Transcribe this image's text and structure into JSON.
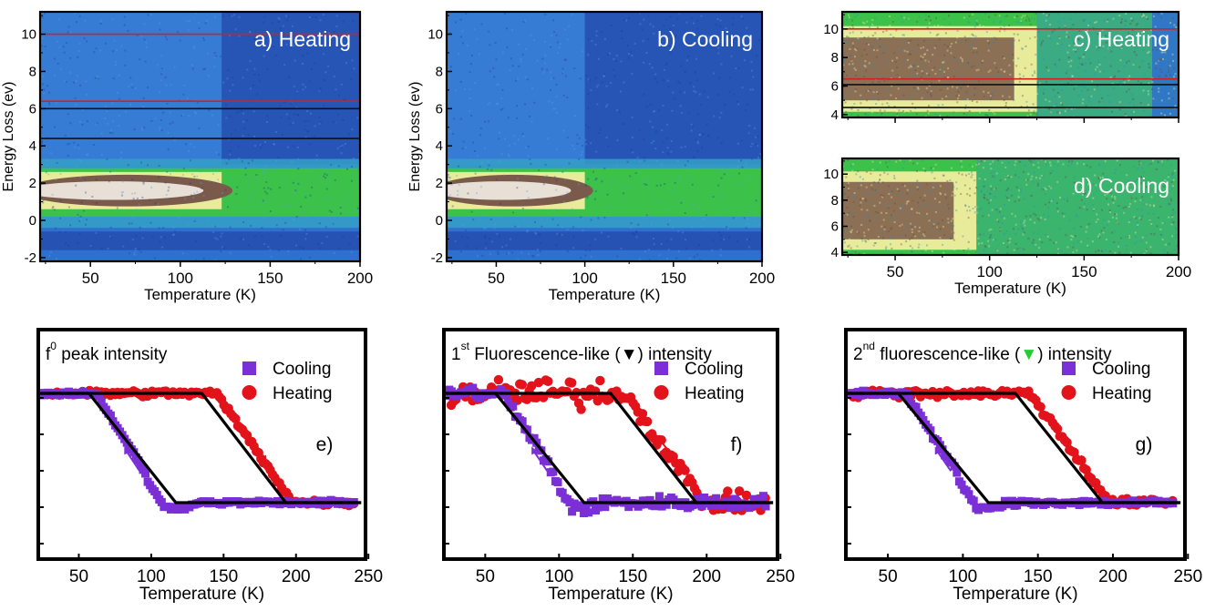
{
  "colors": {
    "frame": "#000000",
    "map_dark_blue": "#1f3fa0",
    "map_blue": "#2f6fd0",
    "map_cyan": "#35a0c8",
    "map_green": "#3cc24a",
    "map_yellow": "#e8ec9a",
    "map_brown": "#7a5a4a",
    "map_pale": "#f4ede6",
    "hline_red": "#d42020",
    "hline_black": "#111111",
    "cooling": "#7b2fd6",
    "heating": "#e3131b",
    "fit": "#000000",
    "down_marker": "#000000",
    "green_marker": "#22cc33"
  },
  "chart_data": [
    {
      "id": "a",
      "type": "heatmap",
      "panel_label": "a) Heating",
      "xlabel": "Temperature (K)",
      "ylabel": "Energy Loss (ev)",
      "xlim": [
        22,
        200
      ],
      "ylim": [
        -2.2,
        11.2
      ],
      "xticks": [
        "50",
        "100",
        "150",
        "200"
      ],
      "yticks": [
        "-2",
        "0",
        "2",
        "4",
        "6",
        "8",
        "10"
      ],
      "transition_temperature": 123,
      "hlines": [
        {
          "y": 10.0,
          "color": "red"
        },
        {
          "y": 6.4,
          "color": "red"
        },
        {
          "y": 6.0,
          "color": "black"
        },
        {
          "y": 4.4,
          "color": "black"
        }
      ]
    },
    {
      "id": "b",
      "type": "heatmap",
      "panel_label": "b) Cooling",
      "xlabel": "Temperature (K)",
      "ylabel": "Energy Loss (ev)",
      "xlim": [
        22,
        200
      ],
      "ylim": [
        -2.2,
        11.2
      ],
      "xticks": [
        "50",
        "100",
        "150",
        "200"
      ],
      "yticks": [
        "-2",
        "0",
        "2",
        "4",
        "6",
        "8",
        "10"
      ],
      "transition_temperature": 100,
      "hlines": []
    },
    {
      "id": "c",
      "type": "heatmap",
      "panel_label": "c) Heating",
      "xlabel": "",
      "ylabel": "",
      "xlim": [
        22,
        200
      ],
      "ylim": [
        3.8,
        11.2
      ],
      "xticks": [],
      "yticks": [
        "4",
        "6",
        "8",
        "10"
      ],
      "transition_temperature": 125,
      "hlines": [
        {
          "y": 10.0,
          "color": "red"
        },
        {
          "y": 6.5,
          "color": "red"
        },
        {
          "y": 6.1,
          "color": "black"
        },
        {
          "y": 4.5,
          "color": "black"
        }
      ]
    },
    {
      "id": "d",
      "type": "heatmap",
      "panel_label": "d) Cooling",
      "xlabel": "Temperature (K)",
      "ylabel": "",
      "xlim": [
        22,
        200
      ],
      "ylim": [
        3.8,
        11.2
      ],
      "xticks": [
        "50",
        "100",
        "150",
        "200"
      ],
      "yticks": [
        "4",
        "6",
        "8",
        "10"
      ],
      "transition_temperature": 93,
      "hlines": []
    },
    {
      "id": "e",
      "type": "scatter",
      "title_main": "f",
      "title_sup": "0",
      "title_rest": " peak intensity",
      "marker": "",
      "panel_label": "e)",
      "xlabel": "Temperature (K)",
      "xlim": [
        22,
        248
      ],
      "ylim": [
        0,
        1.2
      ],
      "xticks": [
        "50",
        "100",
        "150",
        "200",
        "250"
      ],
      "legend": [
        "Cooling",
        "Heating"
      ],
      "cooling_transition": [
        57,
        117
      ],
      "heating_transition": [
        135,
        193
      ],
      "high": 1.0,
      "low": 0.1,
      "noise": 0.03
    },
    {
      "id": "f",
      "type": "scatter",
      "title_main": "1",
      "title_sup": "st",
      "title_rest": " Fluorescence-like (",
      "marker": "▼",
      "title_end": ") intensity",
      "panel_label": "f)",
      "xlabel": "Temperature (K)",
      "xlim": [
        22,
        248
      ],
      "ylim": [
        0,
        1.2
      ],
      "xticks": [
        "50",
        "100",
        "150",
        "200",
        "250"
      ],
      "legend": [
        "Cooling",
        "Heating"
      ],
      "cooling_transition": [
        57,
        117
      ],
      "heating_transition": [
        135,
        193
      ],
      "high": 1.0,
      "low": 0.1,
      "noise": 0.09
    },
    {
      "id": "g",
      "type": "scatter",
      "title_main": "2",
      "title_sup": "nd",
      "title_rest": " fluorescence-like (",
      "marker": "▼",
      "title_end": ") intensity",
      "panel_label": "g)",
      "xlabel": "Temperature (K)",
      "xlim": [
        22,
        248
      ],
      "ylim": [
        0,
        1.2
      ],
      "xticks": [
        "50",
        "100",
        "150",
        "200",
        "250"
      ],
      "legend": [
        "Cooling",
        "Heating"
      ],
      "cooling_transition": [
        57,
        117
      ],
      "heating_transition": [
        135,
        193
      ],
      "high": 1.0,
      "low": 0.1,
      "noise": 0.04
    }
  ]
}
